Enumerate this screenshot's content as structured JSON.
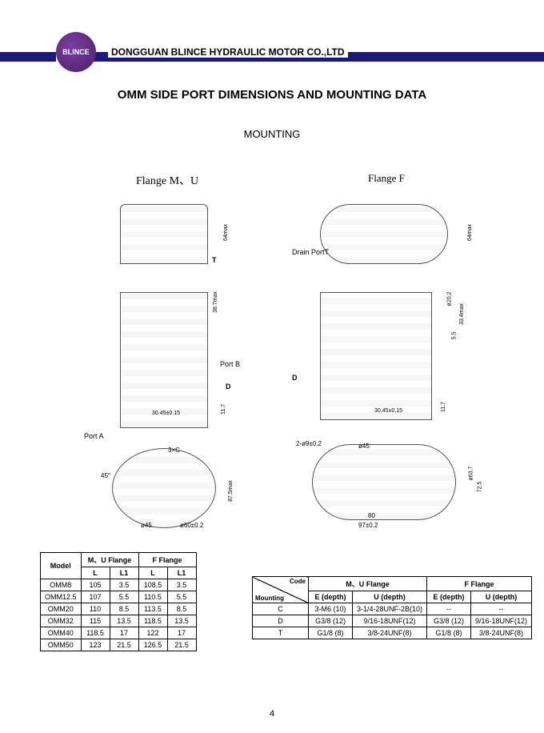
{
  "header": {
    "company": "DONGGUAN BLINCE HYDRAULIC MOTOR CO.,LTD",
    "logo_text": "BLINCE",
    "title": "OMM SIDE PORT DIMENSIONS AND MOUNTING DATA",
    "subtitle": "MOUNTING",
    "page_number": "4"
  },
  "flange_labels": {
    "left": "Flange  M、U",
    "right": "Flange  F"
  },
  "annotations": {
    "port_a": "Port A",
    "port_b": "Port B",
    "d": "D",
    "t": "T",
    "drain_port": "Drain PortT",
    "dim1": "30.45±0.15",
    "dim2": "30.45±0.15",
    "dim3": "3×C",
    "dim4": "45°",
    "dim5": "ø45",
    "dim6": "ø60±0.2",
    "dim7": "97±0.2",
    "dim8": "80",
    "dim9": "2-ø9±0.2",
    "dim10": "ø20.2",
    "dim11": "ø45",
    "dim12": "64max",
    "dim13": "33.4max",
    "dim14": "11.7",
    "dim15": "38.7max",
    "dim16": "5.5",
    "dim17": "87.5max",
    "dim18": "ø63.7",
    "dim19": "72.5"
  },
  "table1": {
    "headers_top": [
      "",
      "M、U Flange",
      "F Flange"
    ],
    "headers_sub": [
      "Model",
      "L",
      "L1",
      "L",
      "L1"
    ],
    "rows": [
      [
        "OMM8",
        "105",
        "3.5",
        "108.5",
        "3.5"
      ],
      [
        "OMM12.5",
        "107",
        "5.5",
        "110.5",
        "5.5"
      ],
      [
        "OMM20",
        "110",
        "8.5",
        "113.5",
        "8.5"
      ],
      [
        "OMM32",
        "115",
        "13.5",
        "118.5",
        "13.5"
      ],
      [
        "OMM40",
        "118.5",
        "17",
        "122",
        "17"
      ],
      [
        "OMM50",
        "123",
        "21.5",
        "126.5",
        "21.5"
      ]
    ]
  },
  "table2": {
    "headers_top": [
      "",
      "M、U Flange",
      "F Flange"
    ],
    "diag": {
      "code": "Code",
      "mount": "Mounting"
    },
    "headers_sub": [
      "E (depth)",
      "U (depth)",
      "E (depth)",
      "U (depth)"
    ],
    "rows": [
      [
        "C",
        "3-M6  (10)",
        "3-1/4-28UNF-2B(10)",
        "--",
        "--"
      ],
      [
        "D",
        "G3/8  (12)",
        "9/16-18UNF(12)",
        "G3/8  (12)",
        "9/16-18UNF(12)"
      ],
      [
        "T",
        "G1/8  (8)",
        "3/8-24UNF(8)",
        "G1/8  (8)",
        "3/8-24UNF(8)"
      ]
    ]
  },
  "colors": {
    "bar": "#1a1a7a",
    "logo": "#5a2d82"
  }
}
